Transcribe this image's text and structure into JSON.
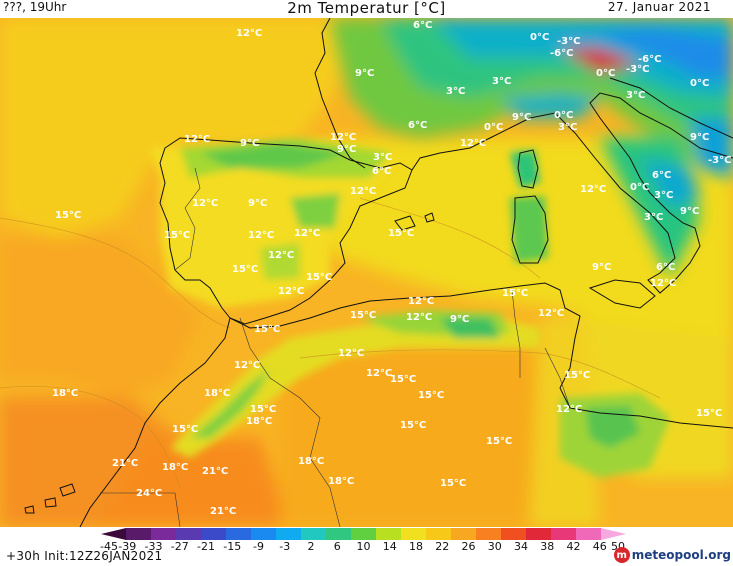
{
  "header": {
    "left": "???, 19Uhr",
    "title": "2m Temperatur [°C]",
    "date": "27. Januar 2021"
  },
  "footer": {
    "run": "+30h  Init:12Z26JAN2021",
    "logo_text": "meteopool.org"
  },
  "legend": {
    "ticks": [
      "-45",
      "-39",
      "-33",
      "-27",
      "-21",
      "-15",
      "-9",
      "-3",
      "2",
      "6",
      "10",
      "14",
      "18",
      "22",
      "26",
      "30",
      "34",
      "38",
      "42",
      "46",
      "50"
    ],
    "colors": [
      "#3a0a3a",
      "#5a1a6a",
      "#7a2a9a",
      "#5a3ab0",
      "#3a4ac8",
      "#2a6ae0",
      "#1a8af0",
      "#10aaf0",
      "#20c8c0",
      "#30c880",
      "#60d040",
      "#b8e020",
      "#f0e020",
      "#f8c818",
      "#f8a820",
      "#f88020",
      "#f05020",
      "#e02838",
      "#e83878",
      "#f068b8",
      "#f8a8e0"
    ]
  },
  "labels": [
    {
      "text": "12°C"
    },
    {
      "text": "6°C"
    },
    {
      "text": "9°C"
    },
    {
      "text": "3°C"
    },
    {
      "text": "6°C"
    },
    {
      "text": "0°C"
    },
    {
      "text": "-3°C"
    },
    {
      "text": "-6°C"
    },
    {
      "text": "-6°C"
    },
    {
      "text": "3°C"
    },
    {
      "text": "0°C"
    },
    {
      "text": "-3°C"
    },
    {
      "text": "0°C"
    },
    {
      "text": "3°C"
    },
    {
      "text": "9°C"
    },
    {
      "text": "0°C"
    },
    {
      "text": "3°C"
    },
    {
      "text": "0°C"
    },
    {
      "text": "9°C"
    },
    {
      "text": "-3°C"
    },
    {
      "text": "12°C"
    },
    {
      "text": "9°C"
    },
    {
      "text": "12°C"
    },
    {
      "text": "9°C"
    },
    {
      "text": "3°C"
    },
    {
      "text": "6°C"
    },
    {
      "text": "12°C"
    },
    {
      "text": "12°C"
    },
    {
      "text": "9°C"
    },
    {
      "text": "15°C"
    },
    {
      "text": "15°C"
    },
    {
      "text": "12°C"
    },
    {
      "text": "12°C"
    },
    {
      "text": "12°C"
    },
    {
      "text": "15°C"
    },
    {
      "text": "15°C"
    },
    {
      "text": "12°C"
    },
    {
      "text": "0°C"
    },
    {
      "text": "6°C"
    },
    {
      "text": "12°C"
    },
    {
      "text": "3°C"
    },
    {
      "text": "3°C"
    },
    {
      "text": "9°C"
    },
    {
      "text": "6°C"
    },
    {
      "text": "9°C"
    },
    {
      "text": "12°C"
    },
    {
      "text": "15°C"
    },
    {
      "text": "12°C"
    },
    {
      "text": "12°C"
    },
    {
      "text": "9°C"
    },
    {
      "text": "15°C"
    },
    {
      "text": "12°C"
    },
    {
      "text": "15°C"
    },
    {
      "text": "12°C"
    },
    {
      "text": "12°C"
    },
    {
      "text": "18°C"
    },
    {
      "text": "12°C"
    },
    {
      "text": "18°C"
    },
    {
      "text": "15°C"
    },
    {
      "text": "18°C"
    },
    {
      "text": "15°C"
    },
    {
      "text": "15°C"
    },
    {
      "text": "15°C"
    },
    {
      "text": "15°C"
    },
    {
      "text": "12°C"
    },
    {
      "text": "12°C"
    },
    {
      "text": "15°C"
    },
    {
      "text": "21°C"
    },
    {
      "text": "18°C"
    },
    {
      "text": "21°C"
    },
    {
      "text": "24°C"
    },
    {
      "text": "18°C"
    },
    {
      "text": "18°C"
    },
    {
      "text": "15°C"
    },
    {
      "text": "15°C"
    },
    {
      "text": "21°C"
    },
    {
      "text": "15°C"
    },
    {
      "text": "15°C"
    }
  ]
}
